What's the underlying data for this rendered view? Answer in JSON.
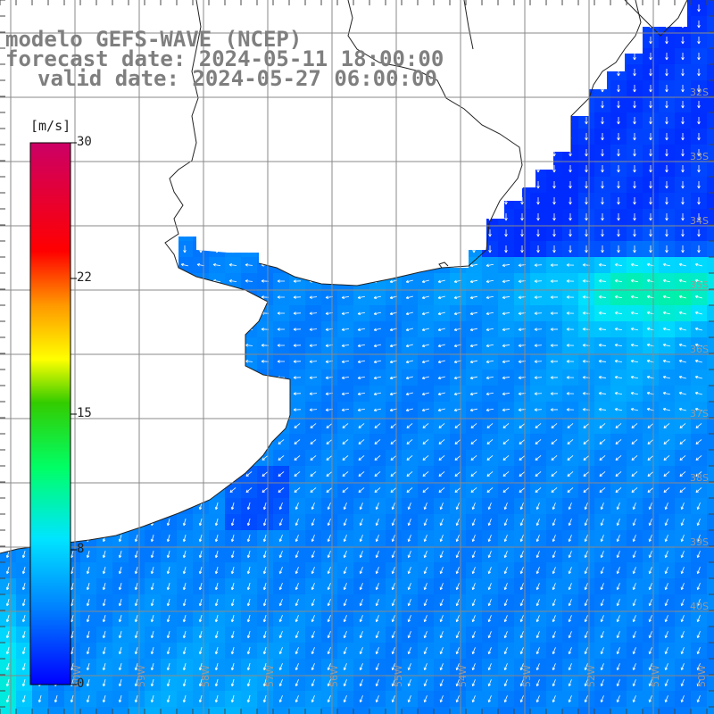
{
  "title": {
    "line1": "modelo GEFS-WAVE (NCEP)",
    "line2": "forecast date: 2024-05-11 18:00:00",
    "line3": "valid date: 2024-05-27 06:00:00"
  },
  "colorbar": {
    "unit": "[m/s]",
    "ticks": [
      "30",
      "22",
      "15",
      "8",
      "0"
    ],
    "tick_values": [
      30,
      22,
      15,
      8,
      0
    ],
    "range": [
      0,
      30
    ],
    "colors": [
      "#0000ff",
      "#0080ff",
      "#00e5ff",
      "#00ff80",
      "#33cc00",
      "#ffff00",
      "#ff8000",
      "#ff0000",
      "#cc0066"
    ]
  },
  "axes": {
    "lat_labels": [
      "32S",
      "33S",
      "34S",
      "35S",
      "36S",
      "37S",
      "38S",
      "39S",
      "40S"
    ],
    "lon_labels": [
      "60W",
      "59W",
      "58W",
      "57W",
      "56W",
      "55W",
      "54W",
      "53W",
      "52W",
      "51W",
      "50W"
    ]
  },
  "map": {
    "field": "10 m wind speed",
    "land_color": "#ffffff",
    "grid_color": "#888888",
    "arrow_color": "#ffffff",
    "colormap_stops": [
      {
        "value": 0,
        "color": "#0000ff"
      },
      {
        "value": 8,
        "color": "#00e5ff"
      },
      {
        "value": 12,
        "color": "#00ff40"
      },
      {
        "value": 15,
        "color": "#66dd00"
      },
      {
        "value": 18,
        "color": "#ffff00"
      },
      {
        "value": 22,
        "color": "#ff6600"
      },
      {
        "value": 26,
        "color": "#ff0000"
      },
      {
        "value": 30,
        "color": "#cc0066"
      }
    ]
  }
}
